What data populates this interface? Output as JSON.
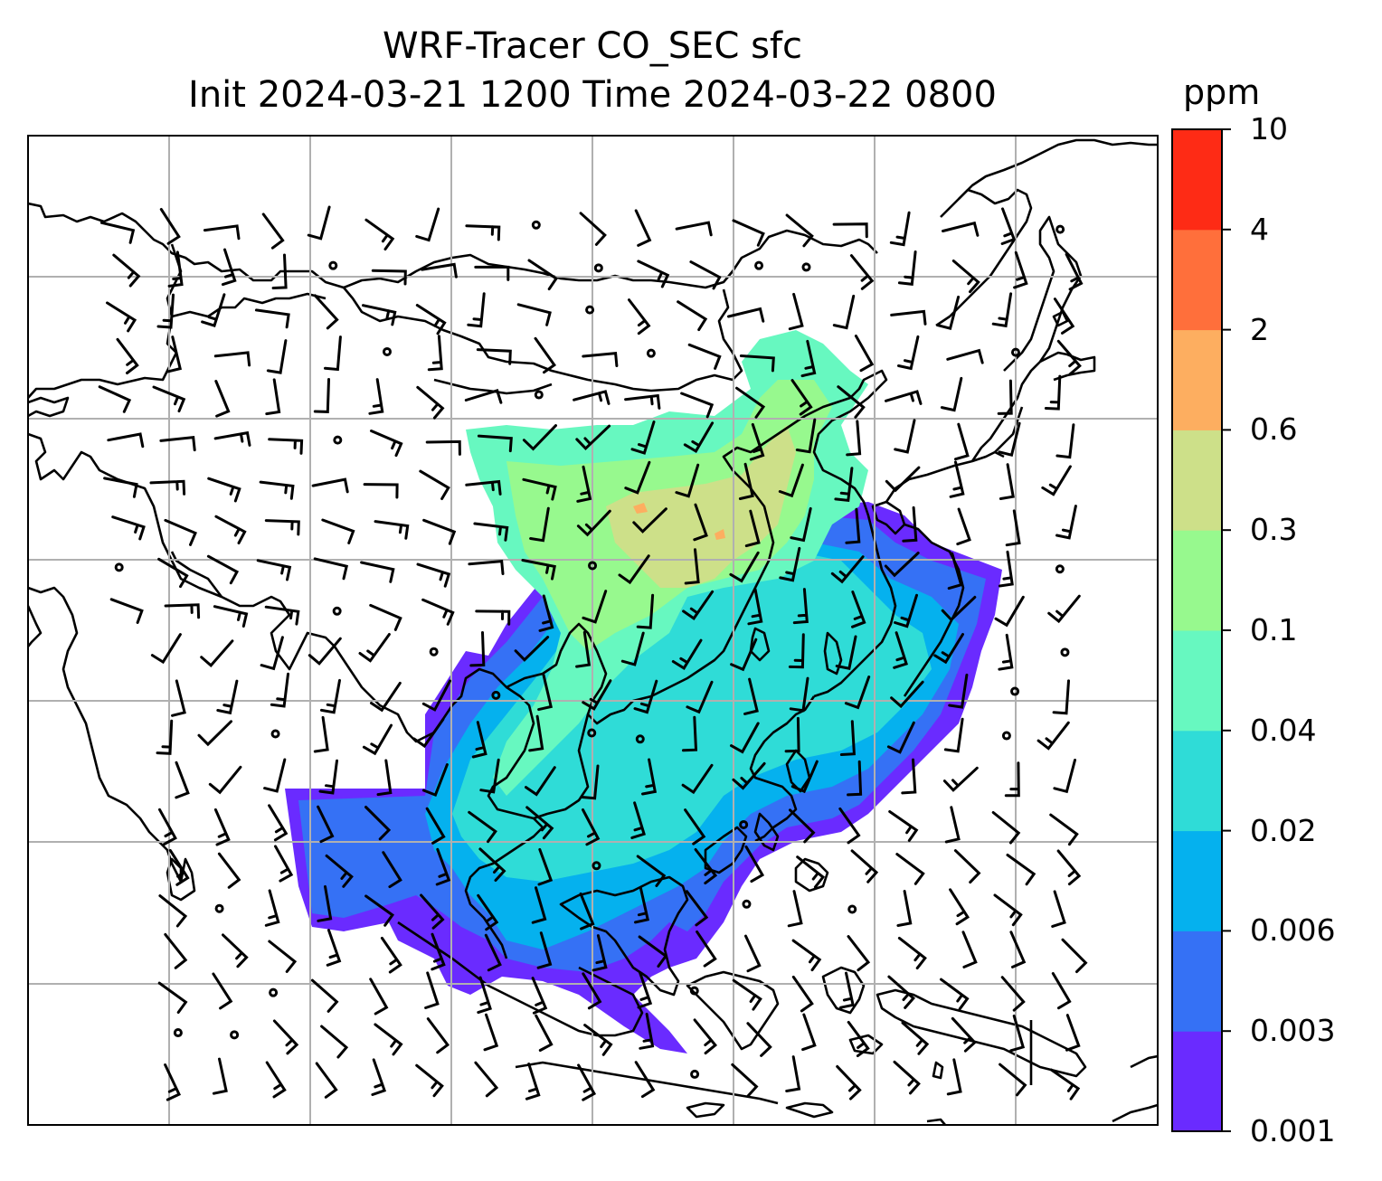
{
  "title": {
    "line1": "WRF-Tracer CO_SEC sfc",
    "line2": "Init 2024-03-21 1200 Time 2024-03-22 0800"
  },
  "colorbar": {
    "units": "ppm",
    "ticks": [
      "0.001",
      "0.003",
      "0.006",
      "0.02",
      "0.04",
      "0.1",
      "0.3",
      "0.6",
      "2",
      "4",
      "10"
    ],
    "colors": [
      "#6a2bff",
      "#3571f5",
      "#05b1ee",
      "#2fdcd7",
      "#67f8c0",
      "#97f98e",
      "#cde089",
      "#fdae60",
      "#ff6f3b",
      "#fe2b15"
    ]
  },
  "map": {
    "background": "#ffffff",
    "coastline_color": "#000000",
    "gridline_color": "#b0b0b0",
    "wind_barb_color": "#000000"
  }
}
